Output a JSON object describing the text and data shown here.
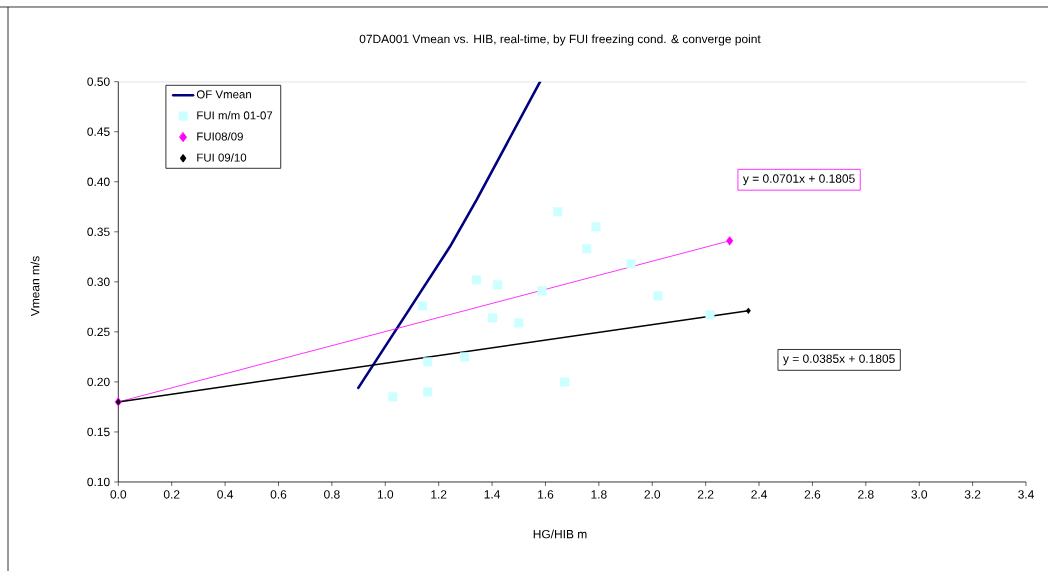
{
  "chart_data": {
    "type": "scatter",
    "title": "07DA001  Vmean vs. HIB,  real-time,  by FUI  freezing cond. & converge point",
    "xlabel": "HG/HIB        m",
    "ylabel": "Vmean  m/s",
    "xlim": [
      0,
      3.4
    ],
    "ylim": [
      0.1,
      0.5
    ],
    "xticks": [
      {
        "value": 0,
        "label": "0.0"
      },
      {
        "value": 0.2,
        "label": "0.2"
      },
      {
        "value": 0.4,
        "label": "0.4"
      },
      {
        "value": 0.6,
        "label": "0.6"
      },
      {
        "value": 0.8,
        "label": "0.8"
      },
      {
        "value": 1,
        "label": "1.0"
      },
      {
        "value": 1.2,
        "label": "1.2"
      },
      {
        "value": 1.4,
        "label": "1.4"
      },
      {
        "value": 1.6,
        "label": "1.6"
      },
      {
        "value": 1.8,
        "label": "1.8"
      },
      {
        "value": 2,
        "label": "2.0"
      },
      {
        "value": 2.2,
        "label": "2.2"
      },
      {
        "value": 2.4,
        "label": "2.4"
      },
      {
        "value": 2.6,
        "label": "2.6"
      },
      {
        "value": 2.8,
        "label": "2.8"
      },
      {
        "value": 3,
        "label": "3.0"
      },
      {
        "value": 3.2,
        "label": "3.2"
      },
      {
        "value": 3.4,
        "label": "3.4"
      }
    ],
    "yticks": [
      {
        "value": 0.1,
        "label": "0.10"
      },
      {
        "value": 0.15,
        "label": "0.15"
      },
      {
        "value": 0.2,
        "label": "0.20"
      },
      {
        "value": 0.25,
        "label": "0.25"
      },
      {
        "value": 0.3,
        "label": "0.30"
      },
      {
        "value": 0.35,
        "label": "0.35"
      },
      {
        "value": 0.4,
        "label": "0.40"
      },
      {
        "value": 0.45,
        "label": "0.45"
      },
      {
        "value": 0.5,
        "label": "0.50"
      }
    ],
    "legend": "top left",
    "series": [
      {
        "name": "OF  Vmean",
        "type": "line",
        "color": "#000080",
        "marker": "none",
        "x": [
          0.899,
          1.13,
          1.242,
          1.342,
          1.58
        ],
        "values": [
          0.194,
          0.289,
          0.335,
          0.382,
          0.5
        ]
      },
      {
        "name": "FUI m/m 01-07",
        "color": "#ccffff",
        "marker": "square",
        "x": [
          1.646,
          1.789,
          1.755,
          1.92,
          1.342,
          1.421,
          1.587,
          2.022,
          1.139,
          1.402,
          1.5,
          2.216,
          1.159,
          1.297,
          1.672,
          1.028,
          1.159
        ],
        "values": [
          0.37,
          0.355,
          0.333,
          0.318,
          0.302,
          0.297,
          0.291,
          0.286,
          0.276,
          0.264,
          0.259,
          0.267,
          0.22,
          0.225,
          0.2,
          0.185,
          0.19
        ]
      },
      {
        "name": "FUI08/09",
        "type": "line",
        "color": "#ff00ff",
        "marker": "diamond",
        "x": [
          0,
          2.29
        ],
        "values": [
          0.18,
          0.341
        ]
      },
      {
        "name": "FUI 09/10",
        "type": "line",
        "color": "#000000",
        "marker": "diamond",
        "x": [
          0,
          2.36
        ],
        "values": [
          0.18,
          0.271
        ]
      }
    ],
    "annotations": [
      "y = 0.0701x + 0.1805",
      "y = 0.0385x + 0.1805"
    ]
  }
}
